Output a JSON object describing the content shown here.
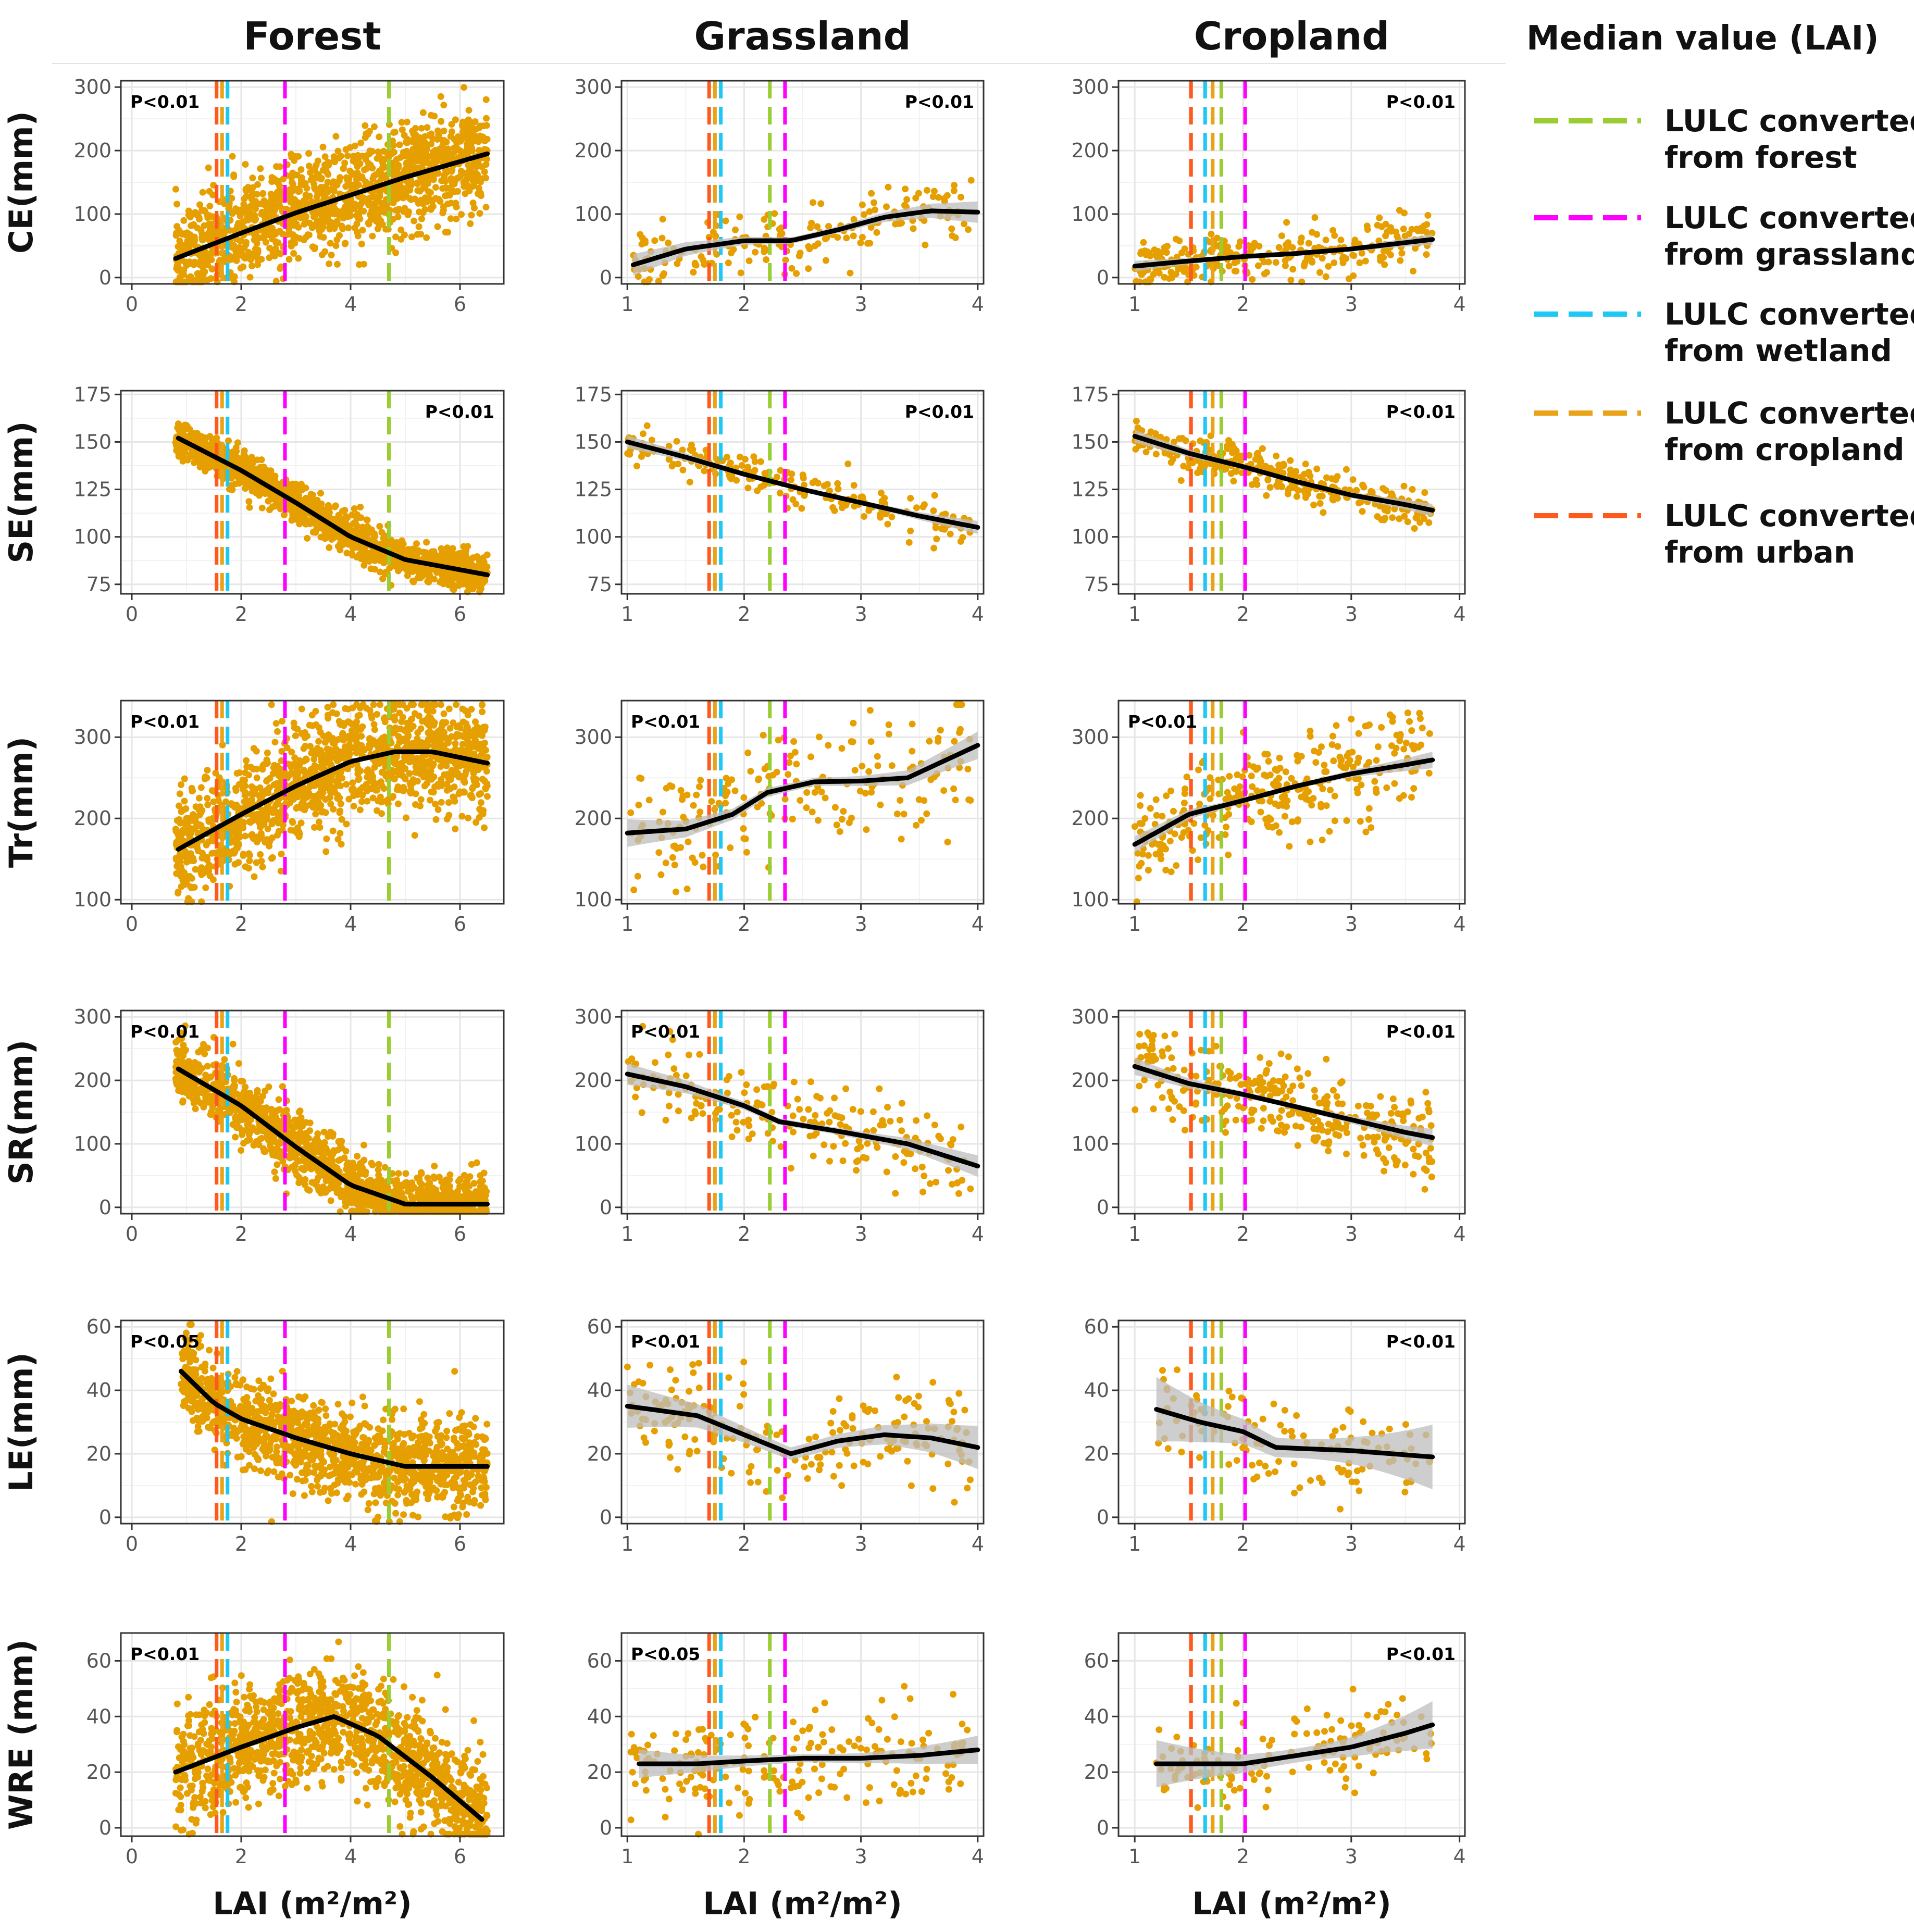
{
  "colors": {
    "forest": "#9ACD32",
    "grassland": "#FF00FF",
    "wetland": "#1EC8F5",
    "cropland": "#E8A317",
    "urban": "#FF5A1E",
    "points": "#E69F00",
    "smooth": "#000000",
    "ribbon": "#BDBDBD"
  },
  "legend": {
    "title": "Median value (LAI)",
    "items": [
      {
        "key": "forest",
        "line1": "LULC converted",
        "line2": "from forest"
      },
      {
        "key": "grassland",
        "line1": "LULC converted",
        "line2": "from grassland"
      },
      {
        "key": "wetland",
        "line1": "LULC converted",
        "line2": "from wetland"
      },
      {
        "key": "cropland",
        "line1": "LULC converted",
        "line2": "from cropland"
      },
      {
        "key": "urban",
        "line1": "LULC converted",
        "line2": "from urban"
      }
    ]
  },
  "chart_data": {
    "type": "scatter",
    "title": "",
    "columns": [
      {
        "name": "Forest",
        "xlabel": "LAI (m²/m²)",
        "xlim": [
          -0.2,
          6.8
        ],
        "xticks": [
          0,
          2,
          4,
          6
        ],
        "medians": {
          "forest": 4.7,
          "grassland": 2.8,
          "wetland": 1.75,
          "cropland": 1.65,
          "urban": 1.55
        }
      },
      {
        "name": "Grassland",
        "xlabel": "LAI (m²/m²)",
        "xlim": [
          0.95,
          4.05
        ],
        "xticks": [
          1,
          2,
          3,
          4
        ],
        "medians": {
          "forest": 2.22,
          "grassland": 2.35,
          "wetland": 1.8,
          "cropland": 1.75,
          "urban": 1.7
        }
      },
      {
        "name": "Cropland",
        "xlabel": "LAI (m²/m²)",
        "xlim": [
          0.85,
          4.05
        ],
        "xticks": [
          1,
          2,
          3,
          4
        ],
        "medians": {
          "forest": 1.8,
          "grassland": 2.02,
          "wetland": 1.65,
          "cropland": 1.72,
          "urban": 1.52
        }
      }
    ],
    "rows": [
      {
        "name": "CE(mm)",
        "ylim": [
          -10,
          310
        ],
        "yticks": [
          0,
          100,
          200,
          300
        ],
        "panels": [
          {
            "p": "P<0.01",
            "p_pos": "top-left",
            "x_range": [
              0.8,
              6.5
            ],
            "n": 1400,
            "spread": 40,
            "smooth": [
              [
                0.8,
                30
              ],
              [
                2,
                70
              ],
              [
                3,
                102
              ],
              [
                4,
                130
              ],
              [
                5,
                158
              ],
              [
                6.5,
                195
              ]
            ],
            "ribbon": 0
          },
          {
            "p": "P<0.01",
            "p_pos": "top-right",
            "x_range": [
              1.05,
              3.95
            ],
            "n": 180,
            "spread": 25,
            "smooth": [
              [
                1.05,
                20
              ],
              [
                1.5,
                45
              ],
              [
                2,
                58
              ],
              [
                2.4,
                58
              ],
              [
                2.8,
                75
              ],
              [
                3.2,
                95
              ],
              [
                3.6,
                105
              ],
              [
                4,
                103
              ]
            ],
            "ribbon": 10
          },
          {
            "p": "P<0.01",
            "p_pos": "top-right",
            "x_range": [
              1.0,
              3.75
            ],
            "n": 280,
            "spread": 20,
            "smooth": [
              [
                1,
                18
              ],
              [
                1.5,
                26
              ],
              [
                2,
                33
              ],
              [
                2.5,
                38
              ],
              [
                3,
                45
              ],
              [
                3.5,
                55
              ],
              [
                3.75,
                60
              ]
            ],
            "ribbon": 5
          }
        ]
      },
      {
        "name": "SE(mm)",
        "ylim": [
          70,
          177
        ],
        "yticks": [
          75,
          100,
          125,
          150,
          175
        ],
        "panels": [
          {
            "p": "P<0.01",
            "p_pos": "top-right",
            "x_range": [
              0.8,
              6.5
            ],
            "n": 1400,
            "spread": 5,
            "smooth": [
              [
                0.85,
                152
              ],
              [
                2,
                135
              ],
              [
                3,
                118
              ],
              [
                4,
                100
              ],
              [
                5,
                88
              ],
              [
                6.5,
                80
              ]
            ],
            "ribbon": 0
          },
          {
            "p": "P<0.01",
            "p_pos": "top-right",
            "x_range": [
              1.0,
              3.95
            ],
            "n": 200,
            "spread": 5,
            "smooth": [
              [
                1,
                150
              ],
              [
                1.5,
                142
              ],
              [
                2,
                133
              ],
              [
                2.5,
                125
              ],
              [
                3,
                118
              ],
              [
                3.5,
                111
              ],
              [
                4,
                105
              ]
            ],
            "ribbon": 2
          },
          {
            "p": "P<0.01",
            "p_pos": "top-right",
            "x_range": [
              1.0,
              3.75
            ],
            "n": 320,
            "spread": 5,
            "smooth": [
              [
                1,
                153
              ],
              [
                1.5,
                144
              ],
              [
                2,
                137
              ],
              [
                2.5,
                129
              ],
              [
                3,
                122
              ],
              [
                3.5,
                117
              ],
              [
                3.75,
                114
              ]
            ],
            "ribbon": 2
          }
        ]
      },
      {
        "name": "Tr(mm)",
        "ylim": [
          95,
          345
        ],
        "yticks": [
          100,
          200,
          300
        ],
        "panels": [
          {
            "p": "P<0.01",
            "p_pos": "top-left",
            "x_range": [
              0.8,
              6.5
            ],
            "n": 1400,
            "spread": 35,
            "smooth": [
              [
                0.85,
                162
              ],
              [
                2,
                205
              ],
              [
                3,
                240
              ],
              [
                4,
                270
              ],
              [
                4.8,
                282
              ],
              [
                5.5,
                282
              ],
              [
                6.5,
                268
              ]
            ],
            "ribbon": 0
          },
          {
            "p": "P<0.01",
            "p_pos": "top-left",
            "x_range": [
              1.0,
              3.95
            ],
            "n": 200,
            "spread": 35,
            "smooth": [
              [
                1,
                182
              ],
              [
                1.5,
                187
              ],
              [
                1.9,
                205
              ],
              [
                2.2,
                232
              ],
              [
                2.6,
                245
              ],
              [
                3,
                246
              ],
              [
                3.4,
                250
              ],
              [
                4,
                290
              ]
            ],
            "ribbon": 10
          },
          {
            "p": "P<0.01",
            "p_pos": "top-left",
            "x_range": [
              1.0,
              3.75
            ],
            "n": 320,
            "spread": 30,
            "smooth": [
              [
                1,
                168
              ],
              [
                1.5,
                205
              ],
              [
                2,
                222
              ],
              [
                2.5,
                240
              ],
              [
                3,
                255
              ],
              [
                3.5,
                266
              ],
              [
                3.75,
                272
              ]
            ],
            "ribbon": 6
          }
        ]
      },
      {
        "name": "SR(mm)",
        "ylim": [
          -10,
          310
        ],
        "yticks": [
          0,
          100,
          200,
          300
        ],
        "panels": [
          {
            "p": "P<0.01",
            "p_pos": "top-left",
            "x_range": [
              0.8,
              6.5
            ],
            "n": 1400,
            "spread": 25,
            "smooth": [
              [
                0.85,
                218
              ],
              [
                2,
                160
              ],
              [
                3,
                95
              ],
              [
                4,
                35
              ],
              [
                5,
                5
              ],
              [
                6.5,
                5
              ]
            ],
            "ribbon": 0
          },
          {
            "p": "P<0.01",
            "p_pos": "top-left",
            "x_range": [
              1.0,
              3.95
            ],
            "n": 200,
            "spread": 30,
            "smooth": [
              [
                1,
                210
              ],
              [
                1.5,
                190
              ],
              [
                2,
                160
              ],
              [
                2.3,
                135
              ],
              [
                2.8,
                120
              ],
              [
                3.4,
                100
              ],
              [
                4,
                65
              ]
            ],
            "ribbon": 10
          },
          {
            "p": "P<0.01",
            "p_pos": "top-right",
            "x_range": [
              1.0,
              3.75
            ],
            "n": 320,
            "spread": 30,
            "smooth": [
              [
                1,
                222
              ],
              [
                1.5,
                195
              ],
              [
                2,
                178
              ],
              [
                2.5,
                158
              ],
              [
                3,
                138
              ],
              [
                3.5,
                118
              ],
              [
                3.75,
                110
              ]
            ],
            "ribbon": 8
          }
        ]
      },
      {
        "name": "LE(mm)",
        "ylim": [
          -2,
          62
        ],
        "yticks": [
          0,
          20,
          40,
          60
        ],
        "panels": [
          {
            "p": "P<0.05",
            "p_pos": "top-left",
            "x_range": [
              0.9,
              6.5
            ],
            "n": 1300,
            "spread": 7,
            "smooth": [
              [
                0.9,
                46
              ],
              [
                1.5,
                36
              ],
              [
                2,
                31
              ],
              [
                3,
                25
              ],
              [
                4,
                20
              ],
              [
                5,
                16
              ],
              [
                6.5,
                16
              ]
            ],
            "ribbon": 0
          },
          {
            "p": "P<0.01",
            "p_pos": "top-left",
            "x_range": [
              1.0,
              3.95
            ],
            "n": 200,
            "spread": 8,
            "smooth": [
              [
                1,
                35
              ],
              [
                1.6,
                32
              ],
              [
                2,
                26
              ],
              [
                2.4,
                20
              ],
              [
                2.8,
                24
              ],
              [
                3.2,
                26
              ],
              [
                3.6,
                25
              ],
              [
                4,
                22
              ]
            ],
            "ribbon": 4
          },
          {
            "p": "P<0.01",
            "p_pos": "top-right",
            "x_range": [
              1.2,
              3.75
            ],
            "n": 120,
            "spread": 7,
            "smooth": [
              [
                1.2,
                34
              ],
              [
                1.6,
                30
              ],
              [
                2,
                27
              ],
              [
                2.3,
                22
              ],
              [
                3,
                21
              ],
              [
                3.75,
                19
              ]
            ],
            "ribbon": 6
          }
        ]
      },
      {
        "name": "WRE (mm)",
        "ylim": [
          -3,
          70
        ],
        "yticks": [
          0,
          20,
          40,
          60
        ],
        "panels": [
          {
            "p": "P<0.01",
            "p_pos": "top-left",
            "x_range": [
              0.8,
              6.5
            ],
            "n": 1300,
            "spread": 10,
            "smooth": [
              [
                0.8,
                20
              ],
              [
                2,
                29
              ],
              [
                3,
                36
              ],
              [
                3.7,
                40
              ],
              [
                4.5,
                33
              ],
              [
                5.5,
                18
              ],
              [
                6.4,
                3
              ]
            ],
            "ribbon": 0
          },
          {
            "p": "P<0.05",
            "p_pos": "top-left",
            "x_range": [
              1.0,
              3.95
            ],
            "n": 200,
            "spread": 9,
            "smooth": [
              [
                1.1,
                23
              ],
              [
                1.6,
                23
              ],
              [
                2,
                24
              ],
              [
                2.5,
                25
              ],
              [
                3,
                25
              ],
              [
                3.5,
                26
              ],
              [
                4,
                28
              ]
            ],
            "ribbon": 3
          },
          {
            "p": "P<0.01",
            "p_pos": "top-right",
            "x_range": [
              1.2,
              3.75
            ],
            "n": 130,
            "spread": 8,
            "smooth": [
              [
                1.2,
                23
              ],
              [
                1.6,
                23
              ],
              [
                2,
                23
              ],
              [
                2.5,
                26
              ],
              [
                3,
                29
              ],
              [
                3.5,
                34
              ],
              [
                3.75,
                37
              ]
            ],
            "ribbon": 5
          }
        ]
      }
    ]
  }
}
